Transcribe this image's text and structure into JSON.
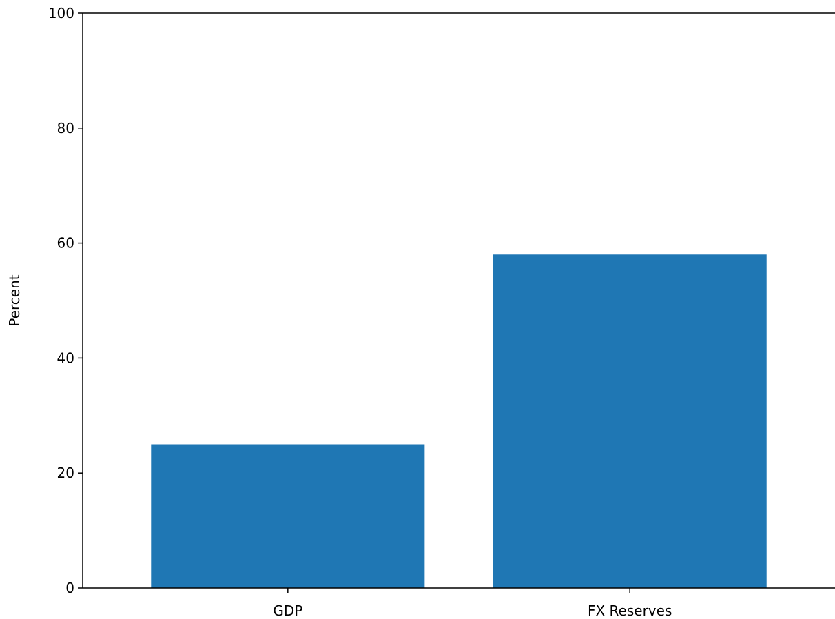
{
  "chart_data": {
    "type": "bar",
    "title": "",
    "xlabel": "",
    "ylabel": "Percent",
    "categories": [
      "GDP",
      "FX Reserves"
    ],
    "values": [
      25,
      58
    ],
    "ylim": [
      0,
      100
    ],
    "yticks": [
      0,
      20,
      40,
      60,
      80,
      100
    ],
    "grid": false,
    "bar_color": "#1f77b4",
    "axis_color": "#000000"
  }
}
